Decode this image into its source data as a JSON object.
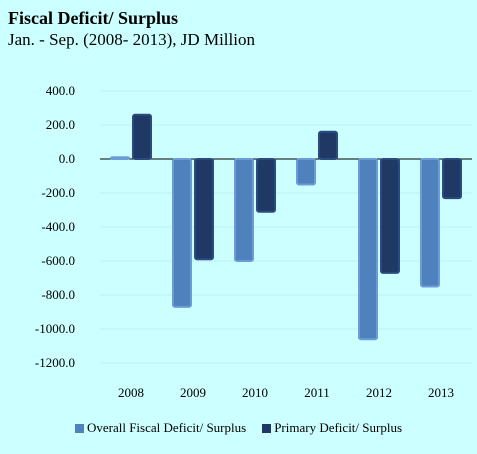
{
  "chart_data": {
    "type": "bar",
    "title": "Fiscal Deficit/ Surplus",
    "subtitle": "Jan. - Sep. (2008- 2013), JD Million",
    "categories": [
      "2008",
      "2009",
      "2010",
      "2011",
      "2012",
      "2013"
    ],
    "series": [
      {
        "name": "Overall Fiscal Deficit/ Surplus",
        "values": [
          10,
          -870,
          -600,
          -150,
          -1060,
          -750
        ],
        "color": "#4f81bd"
      },
      {
        "name": "Primary Deficit/ Surplus",
        "values": [
          260,
          -590,
          -310,
          160,
          -670,
          -230
        ],
        "color": "#1f3864"
      }
    ],
    "ylim": [
      -1200,
      400
    ],
    "yticks": [
      "400.0",
      "200.0",
      "0.0",
      "-200.0",
      "-400.0",
      "-600.0",
      "-800.0",
      "-1000.0",
      "-1200.0"
    ],
    "ytick_values": [
      400,
      200,
      0,
      -200,
      -400,
      -600,
      -800,
      -1000,
      -1200
    ],
    "legend_position": "bottom"
  }
}
